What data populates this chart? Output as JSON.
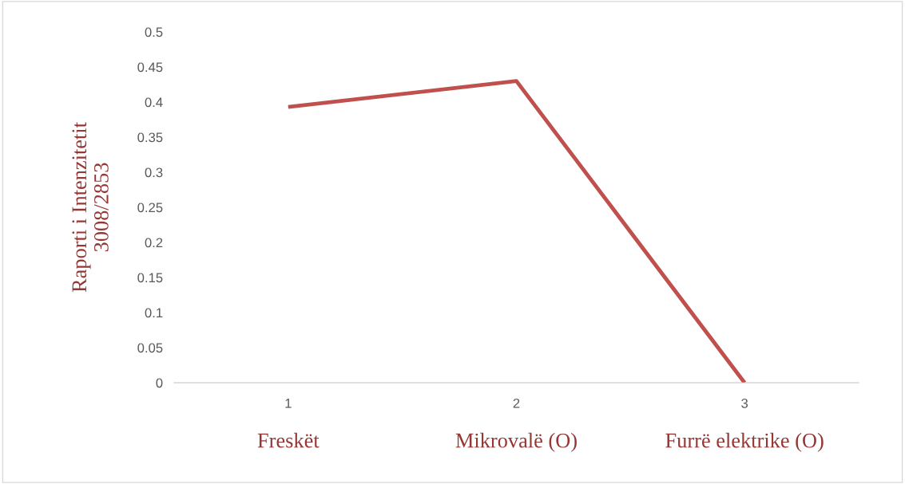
{
  "chart_data": {
    "type": "line",
    "ylabel": "Raporti i Intenzitetit\n3008/2853",
    "categories": [
      "1",
      "2",
      "3"
    ],
    "series": [
      {
        "color": "#c0504d",
        "values": [
          0.393,
          0.43,
          0
        ]
      }
    ],
    "ylim": [
      0,
      0.5
    ],
    "yticks": [
      0,
      0.05,
      0.1,
      0.15,
      0.2,
      0.25,
      0.3,
      0.35,
      0.4,
      0.45,
      0.5
    ],
    "grid": false,
    "legend": false,
    "marker": "none",
    "line_style": "solid",
    "annotations": [
      "Freskët",
      "Mikrovalë (O)",
      "Furrë elektrike (O)"
    ]
  }
}
